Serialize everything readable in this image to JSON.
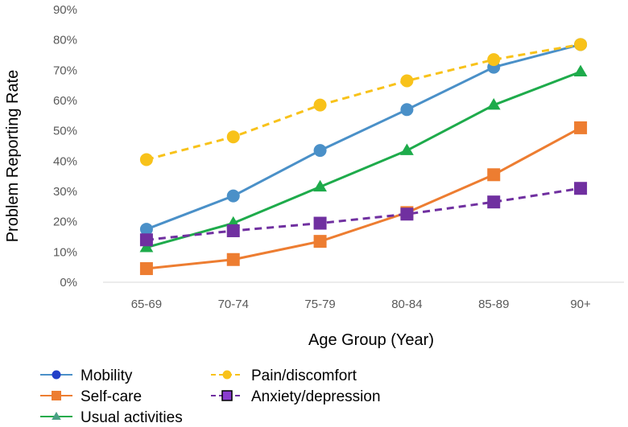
{
  "chart_data": {
    "type": "line",
    "title": "",
    "xlabel": "Age Group (Year)",
    "ylabel": "Problem Reporting Rate",
    "categories": [
      "65-69",
      "70-74",
      "75-79",
      "80-84",
      "85-89",
      "90+"
    ],
    "y_ticks": [
      "0%",
      "10%",
      "20%",
      "30%",
      "40%",
      "50%",
      "60%",
      "70%",
      "80%",
      "90%"
    ],
    "ylim": [
      0,
      90
    ],
    "grid": false,
    "legend_position": "bottom-left",
    "series": [
      {
        "name": "Mobility",
        "values": [
          17.5,
          28.5,
          43.5,
          57,
          71,
          78.5
        ],
        "color": "#4a90c8",
        "marker": "circle",
        "dashed": false,
        "legend_marker_color": "#2340c8"
      },
      {
        "name": "Self-care",
        "values": [
          4.5,
          7.5,
          13.5,
          23,
          35.5,
          51
        ],
        "color": "#ed7d31",
        "marker": "square",
        "dashed": false,
        "legend_marker_color": "#ed7d31"
      },
      {
        "name": "Usual activities",
        "values": [
          11.5,
          19.5,
          31.5,
          43.5,
          58.5,
          69.5
        ],
        "color": "#1eab4b",
        "marker": "triangle",
        "dashed": false,
        "legend_marker_color": "#4aa085"
      },
      {
        "name": "Pain/discomfort",
        "values": [
          40.5,
          48,
          58.5,
          66.5,
          73.5,
          78.5
        ],
        "color": "#f8c21a",
        "marker": "circle",
        "dashed": true,
        "legend_marker_color": "#f8c21a"
      },
      {
        "name": "Anxiety/depression",
        "values": [
          14,
          17,
          19.5,
          22.5,
          26.5,
          31
        ],
        "color": "#7030a0",
        "marker": "square",
        "dashed": true,
        "legend_marker_color": "#8a3ccf"
      }
    ]
  }
}
